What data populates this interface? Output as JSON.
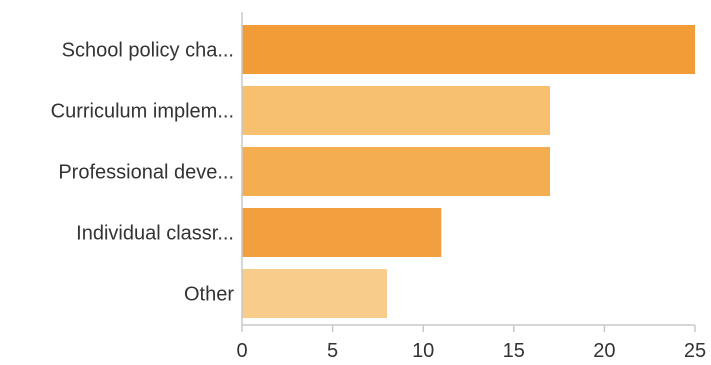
{
  "chart_data": {
    "type": "bar",
    "orientation": "horizontal",
    "categories": [
      "School policy cha...",
      "Curriculum implem...",
      "Professional deve...",
      "Individual classr...",
      "Other"
    ],
    "values": [
      25,
      17,
      17,
      11,
      8
    ],
    "bar_colors": [
      "#f29c38",
      "#f6c06f",
      "#f4ae4f",
      "#f2a03f",
      "#f8cc8a"
    ],
    "xlim": [
      0,
      25
    ],
    "xticks": [
      0,
      5,
      10,
      15,
      20,
      25
    ],
    "grid": false,
    "legend": "none",
    "axis_color": "#c8c8c8",
    "text_color": "#333333"
  }
}
